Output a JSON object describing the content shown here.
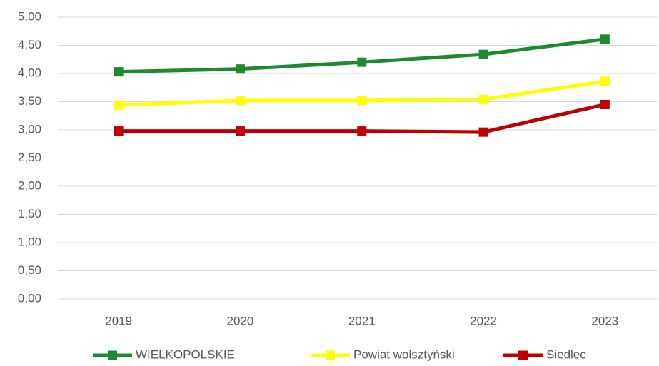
{
  "chart_data": {
    "type": "line",
    "categories": [
      "2019",
      "2020",
      "2021",
      "2022",
      "2023"
    ],
    "series": [
      {
        "name": "WIELKOPOLSKIE",
        "color": "#1e8a2e",
        "values": [
          4.03,
          4.08,
          4.2,
          4.34,
          4.61
        ]
      },
      {
        "name": "Powiat wolsztyński",
        "color": "#ffff00",
        "values": [
          3.44,
          3.52,
          3.52,
          3.54,
          3.86
        ]
      },
      {
        "name": "Siedlec",
        "color": "#c00000",
        "values": [
          2.98,
          2.98,
          2.98,
          2.96,
          3.45
        ]
      }
    ],
    "ylim": [
      0,
      5
    ],
    "yticks": [
      {
        "value": 0,
        "label": "0,00"
      },
      {
        "value": 0.5,
        "label": "0,50"
      },
      {
        "value": 1,
        "label": "1,00"
      },
      {
        "value": 1.5,
        "label": "1,50"
      },
      {
        "value": 2,
        "label": "2,00"
      },
      {
        "value": 2.5,
        "label": "2,50"
      },
      {
        "value": 3,
        "label": "3,00"
      },
      {
        "value": 3.5,
        "label": "3,50"
      },
      {
        "value": 4,
        "label": "4,00"
      },
      {
        "value": 4.5,
        "label": "4,50"
      },
      {
        "value": 5,
        "label": "5,00"
      }
    ],
    "grid": true,
    "legend": "bottom"
  }
}
